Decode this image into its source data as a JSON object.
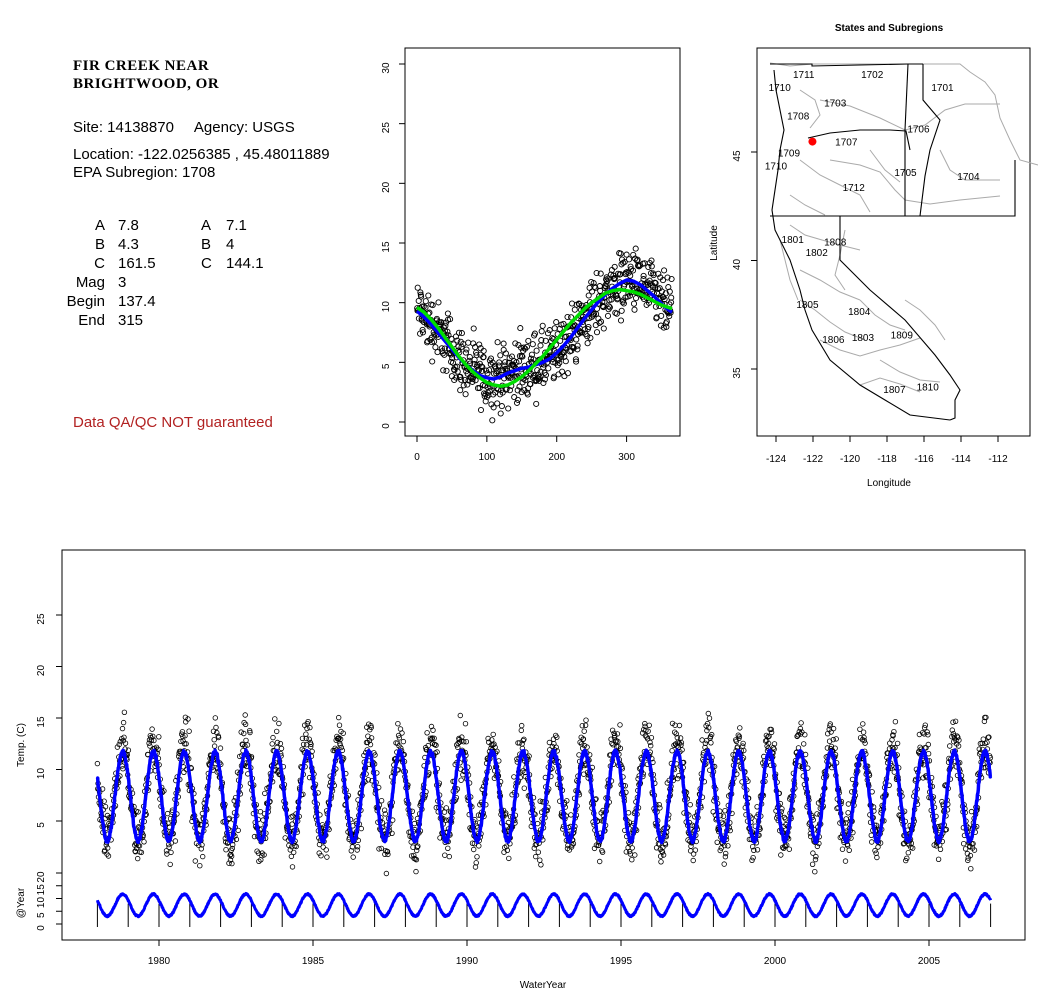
{
  "site": {
    "title_line1": "FIR CREEK NEAR",
    "title_line2": "BRIGHTWOOD, OR",
    "site_line": "Site: 14138870     Agency: USGS",
    "location_line": "Location: -122.0256385 , 45.48011889",
    "subregion_line": "EPA Subregion: 1708",
    "qa_note": "Data QA/QC NOT guaranteed"
  },
  "coefficients": {
    "rows": [
      {
        "label": "A",
        "v1": "7.8",
        "label2": "A",
        "v2": "7.1"
      },
      {
        "label": "B",
        "v1": "4.3",
        "label2": "B",
        "v2": "4"
      },
      {
        "label": "C",
        "v1": "161.5",
        "label2": "C",
        "v2": "144.1"
      },
      {
        "label": "Mag",
        "v1": "3",
        "label2": "",
        "v2": ""
      },
      {
        "label": "Begin",
        "v1": "137.4",
        "label2": "",
        "v2": ""
      },
      {
        "label": "End",
        "v1": "315",
        "label2": "",
        "v2": ""
      }
    ]
  },
  "colors": {
    "points": "#000000",
    "blue_fit": "#0000ff",
    "green_fit": "#00dd00",
    "site_marker": "#ff0000",
    "boundary": "#aaaaaa",
    "qa_text": "#b22222"
  },
  "chart_data": [
    {
      "id": "day-of-year-scatter",
      "type": "scatter",
      "title": "",
      "xlabel": "",
      "ylabel": "",
      "xlim": [
        0,
        365
      ],
      "ylim": [
        0,
        30
      ],
      "x_ticks": [
        0,
        100,
        200,
        300
      ],
      "y_ticks": [
        0,
        5,
        10,
        15,
        20,
        25,
        30
      ],
      "series": [
        {
          "kind": "points",
          "x": [
            0,
            10,
            20,
            30,
            40,
            50,
            60,
            70,
            80,
            90,
            100,
            110,
            120,
            130,
            140,
            150,
            160,
            170,
            180,
            190,
            200,
            210,
            220,
            230,
            240,
            250,
            260,
            270,
            280,
            290,
            300,
            310,
            320,
            330,
            340,
            350,
            360,
            365
          ],
          "y": [
            9.3,
            8.8,
            8.2,
            7.5,
            6.8,
            6.1,
            5.4,
            4.8,
            4.3,
            3.9,
            3.7,
            3.6,
            3.8,
            4.1,
            4.3,
            4.5,
            4.6,
            4.8,
            5.0,
            5.3,
            5.8,
            6.4,
            7.1,
            7.9,
            8.7,
            9.4,
            10.1,
            10.7,
            11.2,
            11.6,
            11.9,
            11.8,
            11.5,
            11.0,
            10.5,
            9.9,
            9.4,
            9.2
          ],
          "spread": 2.0
        },
        {
          "kind": "line",
          "x": [
            0,
            10,
            20,
            30,
            40,
            50,
            60,
            70,
            80,
            90,
            100,
            110,
            120,
            130,
            140,
            150,
            160,
            170,
            180,
            190,
            200,
            210,
            220,
            230,
            240,
            250,
            260,
            270,
            280,
            290,
            300,
            310,
            320,
            330,
            340,
            350,
            360,
            365
          ],
          "y": [
            9.3,
            8.8,
            8.2,
            7.5,
            6.8,
            6.1,
            5.4,
            4.8,
            4.3,
            3.9,
            3.7,
            3.6,
            3.8,
            4.1,
            4.3,
            4.5,
            4.6,
            4.8,
            5.0,
            5.3,
            5.8,
            6.4,
            7.1,
            7.9,
            8.7,
            9.4,
            10.1,
            10.7,
            11.2,
            11.6,
            11.9,
            11.8,
            11.5,
            11.0,
            10.5,
            9.9,
            9.4,
            9.2
          ]
        },
        {
          "kind": "line",
          "x": [
            0,
            10,
            20,
            30,
            40,
            50,
            60,
            70,
            80,
            90,
            100,
            110,
            120,
            130,
            140,
            150,
            160,
            170,
            180,
            190,
            200,
            210,
            220,
            230,
            240,
            250,
            260,
            270,
            280,
            290,
            300,
            310,
            320,
            330,
            340,
            350,
            360,
            365
          ],
          "y": [
            9.6,
            9.2,
            8.6,
            7.9,
            7.1,
            6.3,
            5.5,
            4.8,
            4.2,
            3.7,
            3.3,
            3.1,
            3.0,
            3.1,
            3.4,
            3.8,
            4.3,
            4.9,
            5.5,
            6.2,
            6.9,
            7.6,
            8.3,
            8.9,
            9.5,
            10.0,
            10.4,
            10.8,
            11.0,
            11.1,
            11.0,
            10.9,
            10.7,
            10.4,
            10.1,
            9.8,
            9.6,
            9.5
          ]
        }
      ]
    },
    {
      "id": "water-year-series",
      "type": "line",
      "title": "",
      "xlabel": "WaterYear",
      "ylabel": "Temp. (C)",
      "xlim": [
        1977.6,
        2007.3
      ],
      "ylim": [
        0,
        30
      ],
      "x_ticks": [
        1980,
        1985,
        1990,
        1995,
        2000,
        2005
      ],
      "y_ticks": [
        5,
        10,
        15,
        20,
        25
      ],
      "start_year": 1978,
      "end_year": 2007,
      "mean": 7.4,
      "amplitude": 4.3,
      "peak_fraction": 0.82,
      "point_spread": 2.2
    },
    {
      "id": "anomaly-strip",
      "type": "line",
      "title": "",
      "xlabel": "",
      "ylabel": "@Year",
      "ylim": [
        0,
        20
      ],
      "y_ticks": [
        0,
        5,
        10,
        15,
        20
      ]
    },
    {
      "id": "subregion-map",
      "type": "map",
      "title": "States and Subregions",
      "xlabel": "Longitude",
      "ylabel": "Latitude",
      "xlim": [
        -125,
        -110.5
      ],
      "ylim": [
        32.2,
        49.5
      ],
      "x_ticks": [
        -124,
        -122,
        -120,
        -118,
        -116,
        -114,
        -112
      ],
      "y_ticks": [
        35,
        40,
        45
      ],
      "site": {
        "lon": -122.03,
        "lat": 45.48
      },
      "regions": [
        {
          "label": "1711",
          "lon": -122.5,
          "lat": 48.4
        },
        {
          "label": "1702",
          "lon": -118.8,
          "lat": 48.4
        },
        {
          "label": "1710",
          "lon": -123.8,
          "lat": 47.8
        },
        {
          "label": "1701",
          "lon": -115.0,
          "lat": 47.8
        },
        {
          "label": "1703",
          "lon": -120.8,
          "lat": 47.1
        },
        {
          "label": "1708",
          "lon": -122.8,
          "lat": 46.5
        },
        {
          "label": "1706",
          "lon": -116.3,
          "lat": 45.9
        },
        {
          "label": "1707",
          "lon": -120.2,
          "lat": 45.3
        },
        {
          "label": "1709",
          "lon": -123.3,
          "lat": 44.8
        },
        {
          "label": "1710",
          "lon": -124.0,
          "lat": 44.2
        },
        {
          "label": "1705",
          "lon": -117.0,
          "lat": 43.9
        },
        {
          "label": "1704",
          "lon": -113.6,
          "lat": 43.7
        },
        {
          "label": "1712",
          "lon": -119.8,
          "lat": 43.2
        },
        {
          "label": "1801",
          "lon": -123.1,
          "lat": 40.8
        },
        {
          "label": "1808",
          "lon": -120.8,
          "lat": 40.7
        },
        {
          "label": "1802",
          "lon": -121.8,
          "lat": 40.2
        },
        {
          "label": "1805",
          "lon": -122.3,
          "lat": 37.8
        },
        {
          "label": "1804",
          "lon": -119.5,
          "lat": 37.5
        },
        {
          "label": "1806",
          "lon": -120.9,
          "lat": 36.2
        },
        {
          "label": "1803",
          "lon": -119.3,
          "lat": 36.3
        },
        {
          "label": "1809",
          "lon": -117.2,
          "lat": 36.4
        },
        {
          "label": "1810",
          "lon": -115.8,
          "lat": 34.0
        },
        {
          "label": "1807",
          "lon": -117.6,
          "lat": 33.9
        }
      ]
    }
  ]
}
